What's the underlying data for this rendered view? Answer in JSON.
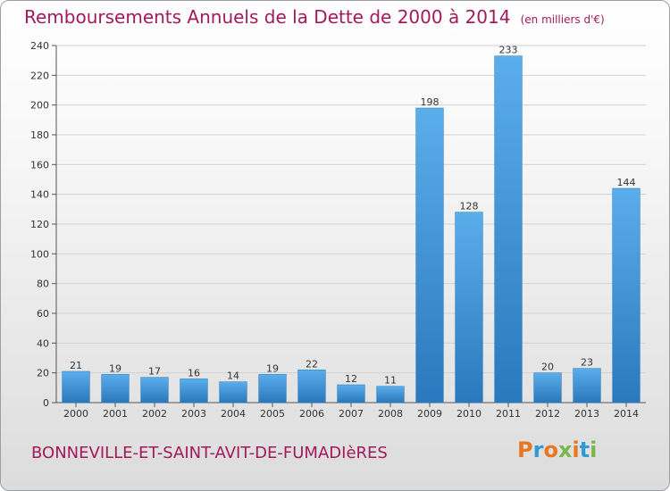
{
  "chart_data": {
    "type": "bar",
    "title": "Remboursements Annuels de la Dette de 2000 à 2014",
    "subtitle": "(en milliers d'€)",
    "xlabel": "",
    "ylabel": "",
    "categories": [
      "2000",
      "2001",
      "2002",
      "2003",
      "2004",
      "2005",
      "2006",
      "2007",
      "2008",
      "2009",
      "2010",
      "2011",
      "2012",
      "2013",
      "2014"
    ],
    "values": [
      21,
      19,
      17,
      16,
      14,
      19,
      22,
      12,
      11,
      198,
      128,
      233,
      20,
      23,
      144
    ],
    "ylim": [
      0,
      240
    ],
    "yticks": [
      0,
      20,
      40,
      60,
      80,
      100,
      120,
      140,
      160,
      180,
      200,
      220,
      240
    ],
    "grid": true,
    "bar_color": "#3d8fd6",
    "title_color": "#a3195b"
  },
  "footer": {
    "commune": "BONNEVILLE-ET-SAINT-AVIT-DE-FUMADIèRES",
    "logo_text": "Proxiti",
    "logo_colors": [
      "#e87722",
      "#2f9ad8",
      "#e87722",
      "#7ab648",
      "#e87722",
      "#2f9ad8",
      "#7ab648"
    ]
  }
}
